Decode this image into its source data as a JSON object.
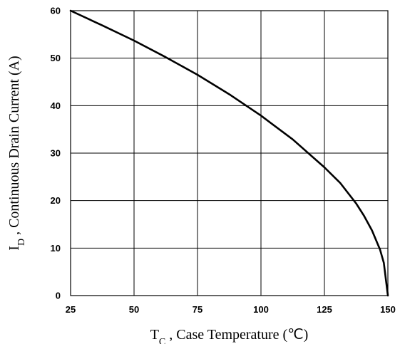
{
  "chart_data": {
    "type": "line",
    "title": "",
    "xlabel": {
      "main": "T",
      "sub": "C",
      "rest": " , Case Temperature (℃)"
    },
    "ylabel": {
      "main": "I",
      "sub": "D",
      "rest": " , Continuous Drain Current (A)"
    },
    "xlim": [
      25,
      150
    ],
    "ylim": [
      0,
      60
    ],
    "xticks": [
      25,
      50,
      75,
      100,
      125,
      150
    ],
    "yticks": [
      0,
      10,
      20,
      30,
      40,
      50,
      60
    ],
    "grid": true,
    "series": [
      {
        "x": [
          25,
          37.5,
          50,
          62.5,
          75,
          87.5,
          100,
          112.5,
          125,
          131.25,
          137.5,
          140.6,
          143.75,
          146.9,
          148.4,
          150
        ],
        "y": [
          60,
          56.9,
          53.7,
          50.2,
          46.5,
          42.4,
          37.9,
          32.9,
          27.0,
          23.7,
          19.4,
          16.8,
          13.7,
          9.7,
          6.9,
          0
        ]
      }
    ]
  }
}
